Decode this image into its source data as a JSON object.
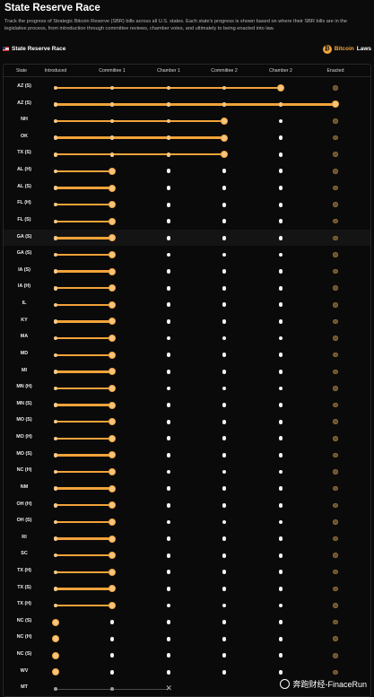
{
  "page": {
    "title": "State Reserve Race",
    "description": "Track the progress of Strategic Bitcoin Reserve (SBR) bills across all U.S. states. Each state's progress is shown based on where their SBR bills are in the legislative process, from introduction through committee reviews, chamber votes, and ultimately to being enacted into law."
  },
  "header": {
    "label": "State Reserve Race",
    "flag_icon": "us-flag-icon",
    "brand_icon": "bitcoin-icon",
    "brand_part1": "Bitcoin",
    "brand_part2": " Laws"
  },
  "columns": [
    "State",
    "Introduced",
    "Committee 1",
    "Chamber 1",
    "Committee 2",
    "Chamber 2",
    "Enacted"
  ],
  "colors": {
    "accent": "#f2a33a",
    "pending": "#f4f4f4",
    "enacted": "#6b4f2a",
    "background": "#0b0b0b"
  },
  "rows": [
    {
      "state": "AZ (S)",
      "stage": 5
    },
    {
      "state": "AZ (S)",
      "stage": 6
    },
    {
      "state": "NH",
      "stage": 4
    },
    {
      "state": "OK",
      "stage": 4
    },
    {
      "state": "TX (S)",
      "stage": 4
    },
    {
      "state": "AL (H)",
      "stage": 2
    },
    {
      "state": "AL (S)",
      "stage": 2
    },
    {
      "state": "FL (H)",
      "stage": 2
    },
    {
      "state": "FL (S)",
      "stage": 2
    },
    {
      "state": "GA (S)",
      "stage": 2
    },
    {
      "state": "GA (S)",
      "stage": 2
    },
    {
      "state": "IA (S)",
      "stage": 2
    },
    {
      "state": "IA (H)",
      "stage": 2
    },
    {
      "state": "IL",
      "stage": 2
    },
    {
      "state": "KY",
      "stage": 2
    },
    {
      "state": "MA",
      "stage": 2
    },
    {
      "state": "MD",
      "stage": 2
    },
    {
      "state": "MI",
      "stage": 2
    },
    {
      "state": "MN (H)",
      "stage": 2
    },
    {
      "state": "MN (S)",
      "stage": 2
    },
    {
      "state": "MO (S)",
      "stage": 2
    },
    {
      "state": "MO (H)",
      "stage": 2
    },
    {
      "state": "MO (S)",
      "stage": 2
    },
    {
      "state": "NC (H)",
      "stage": 2
    },
    {
      "state": "NM",
      "stage": 2
    },
    {
      "state": "OH (H)",
      "stage": 2
    },
    {
      "state": "OH (S)",
      "stage": 2
    },
    {
      "state": "RI",
      "stage": 2
    },
    {
      "state": "SC",
      "stage": 2
    },
    {
      "state": "TX (H)",
      "stage": 2
    },
    {
      "state": "TX (S)",
      "stage": 2
    },
    {
      "state": "TX (H)",
      "stage": 2
    },
    {
      "state": "NC (S)",
      "stage": 1
    },
    {
      "state": "NC (H)",
      "stage": 1
    },
    {
      "state": "NC (S)",
      "stage": 1
    },
    {
      "state": "WV",
      "stage": 1
    },
    {
      "state": "MT",
      "stage": 3,
      "failed": true
    }
  ],
  "highlight_row_index": 9,
  "watermark": {
    "text": "奔跑财经-FinaceRun",
    "icon": "weibo-icon"
  }
}
